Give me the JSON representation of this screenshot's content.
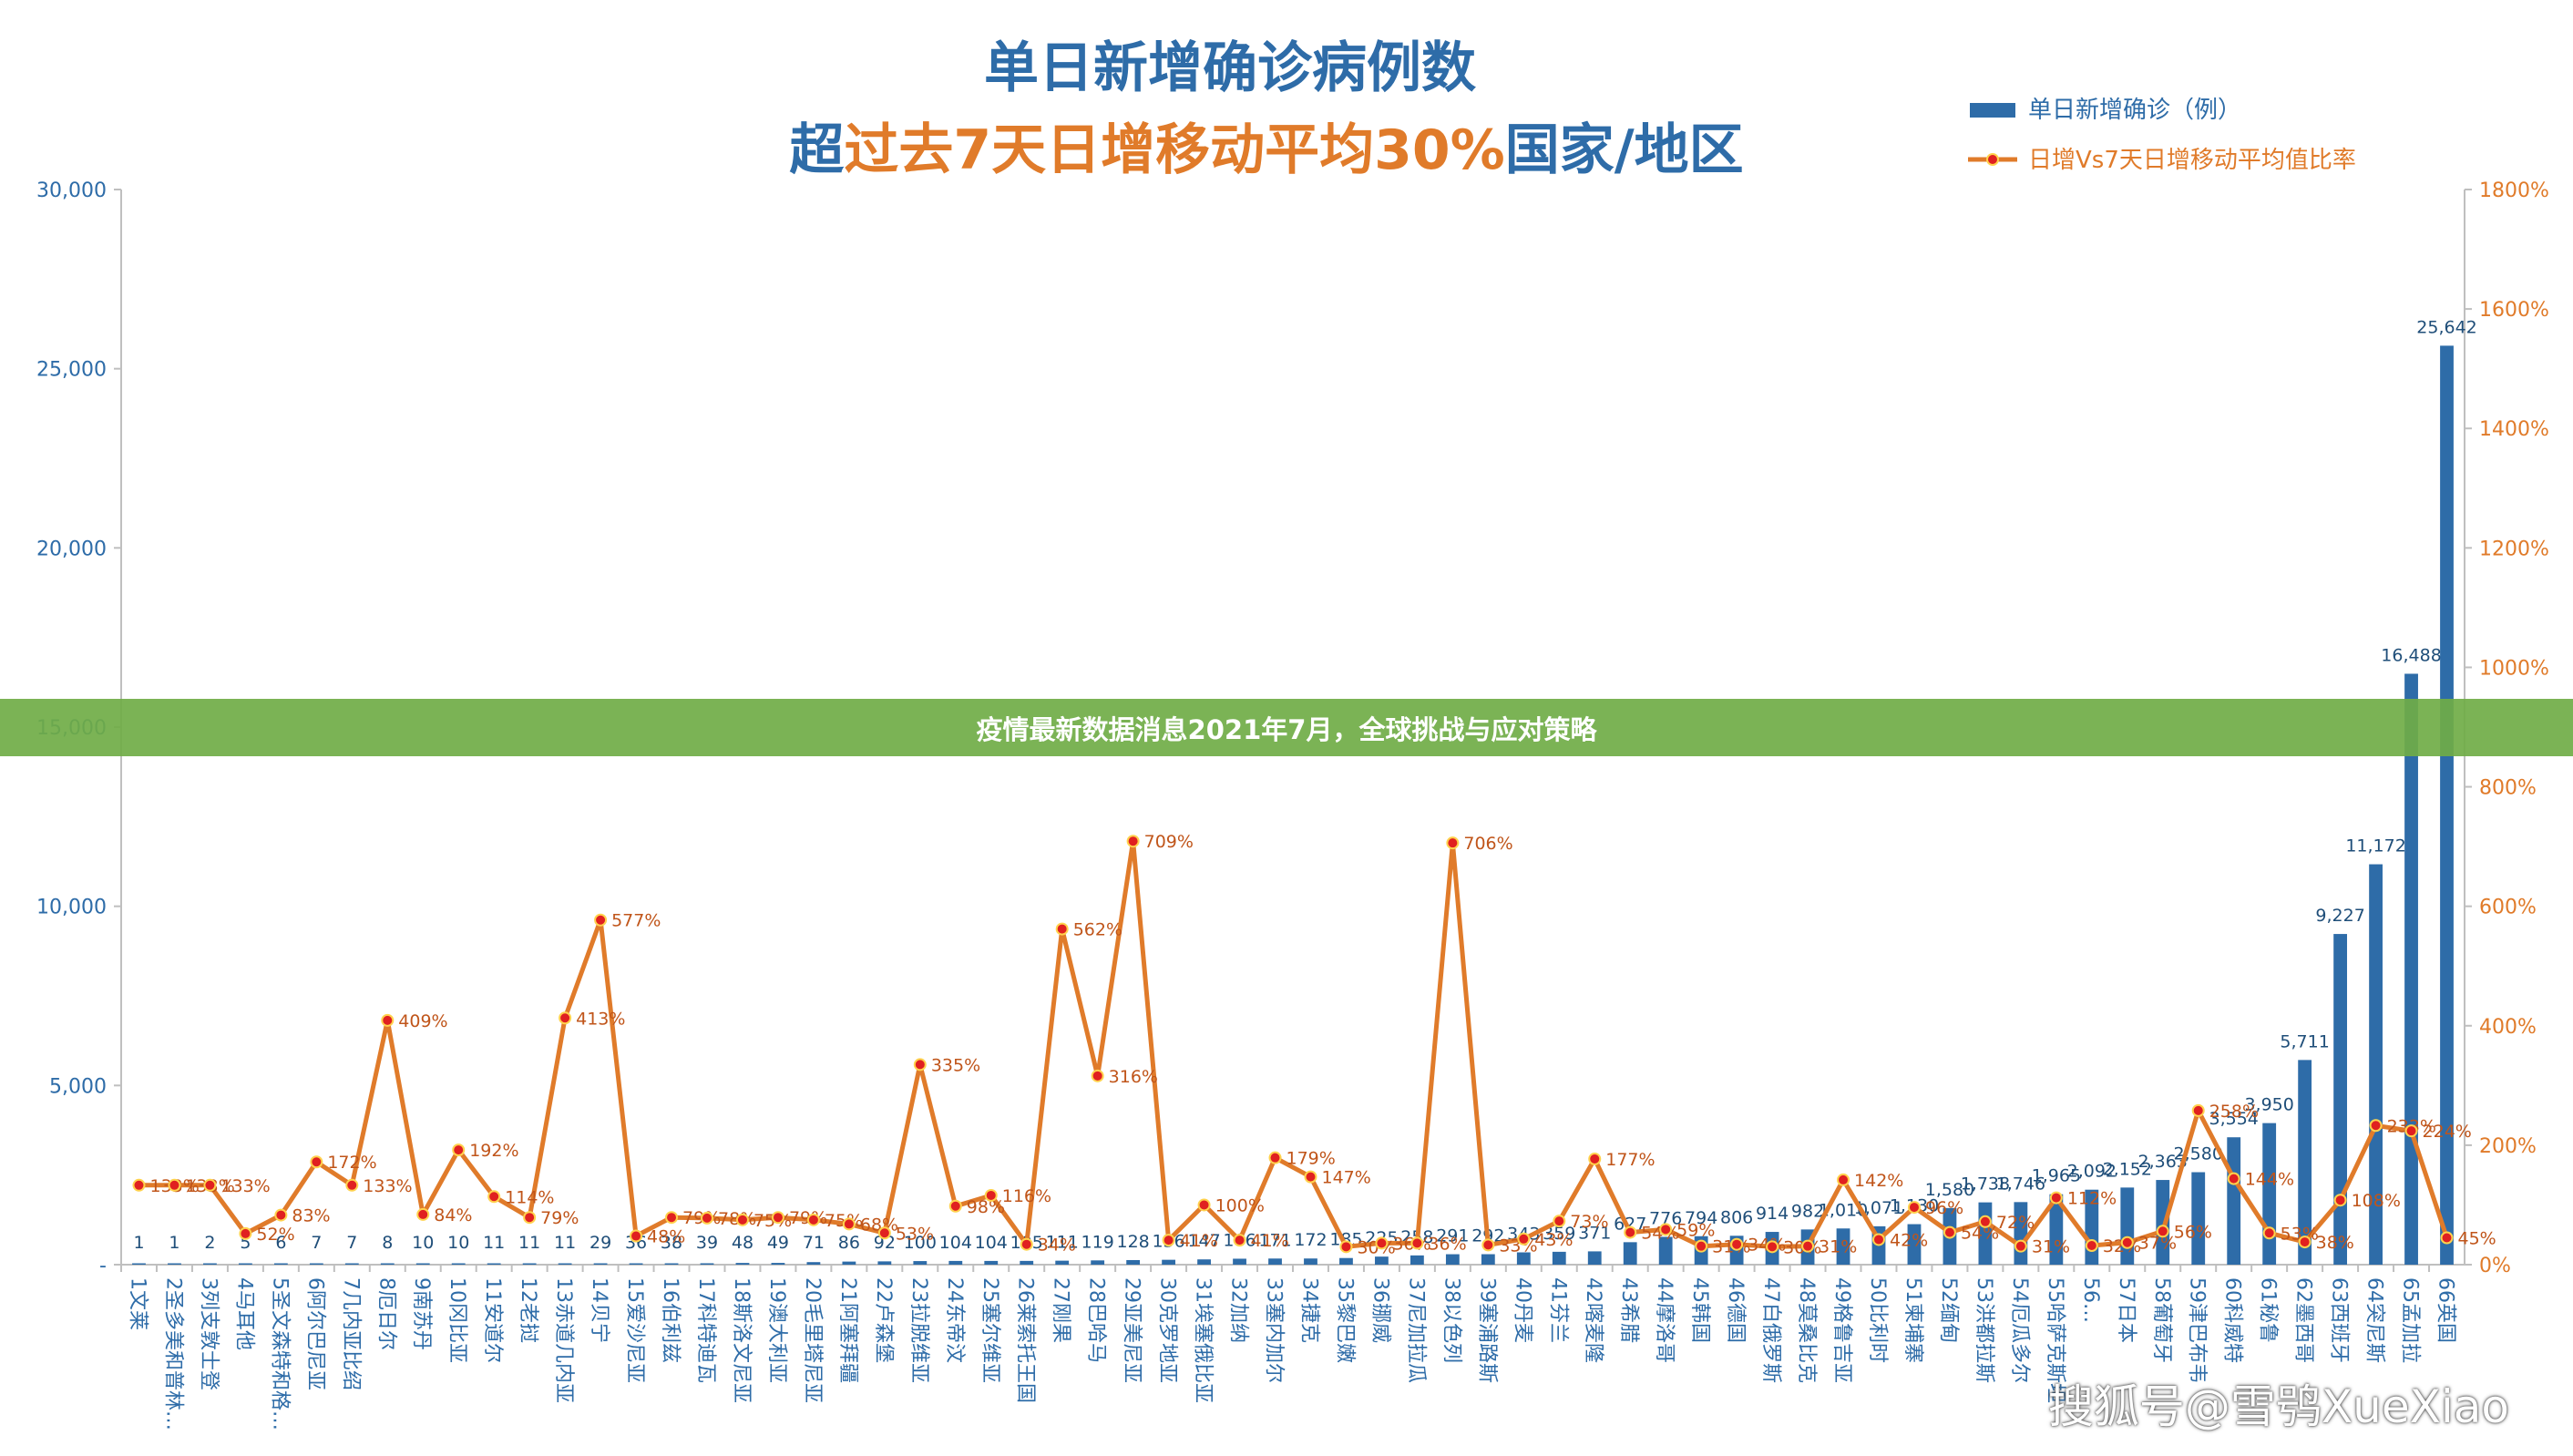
{
  "chart_data": {
    "type": "bar",
    "title": "单日新增确诊病例数",
    "subtitle_segments": [
      {
        "text": "超",
        "color": "#2e6ca8"
      },
      {
        "text": "过去7天日增移动平均30%",
        "color": "#e07b2a"
      },
      {
        "text": "国家/地区",
        "color": "#2e6ca8"
      }
    ],
    "legend_position": "top-right",
    "y_left": {
      "min": 0,
      "max": 30000,
      "ticks": [
        "-",
        "5,000",
        "10,000",
        "15,000",
        "20,000",
        "25,000",
        "30,000"
      ]
    },
    "y_right": {
      "min": 0,
      "max": 1800,
      "ticks": [
        "0%",
        "200%",
        "400%",
        "600%",
        "800%",
        "1000%",
        "1200%",
        "1400%",
        "1600%",
        "1800%"
      ]
    },
    "categories": [
      "1文莱",
      "2圣多美和普林…",
      "3列支敦士登",
      "4马耳他",
      "5圣文森特和格…",
      "6阿尔巴尼亚",
      "7几内亚比绍",
      "8厄日尔",
      "9南苏丹",
      "10冈比亚",
      "11安道尔",
      "12老挝",
      "13赤道几内亚",
      "14贝宁",
      "15爱沙尼亚",
      "16伯利兹",
      "17科特迪瓦",
      "18斯洛文尼亚",
      "19澳大利亚",
      "20毛里塔尼亚",
      "21阿塞拜疆",
      "22卢森堡",
      "23拉脱维亚",
      "24东帝汶",
      "25塞尔维亚",
      "26莱索托王国",
      "27刚果",
      "28巴哈马",
      "29亚美尼亚",
      "30克罗地亚",
      "31埃塞俄比亚",
      "32加纳",
      "33塞内加尔",
      "34捷克",
      "35黎巴嫩",
      "36挪威",
      "37尼加拉瓜",
      "38以色列",
      "39塞浦路斯",
      "40丹麦",
      "41芬兰",
      "42喀麦隆",
      "43希腊",
      "44摩洛哥",
      "45韩国",
      "46德国",
      "47白俄罗斯",
      "48莫桑比克",
      "49格鲁吉亚",
      "50比利时",
      "51柬埔寨",
      "52缅甸",
      "53洪都拉斯",
      "54厄瓜多尔",
      "55哈萨克斯坦",
      "56…",
      "57日本",
      "58葡萄牙",
      "59津巴布韦",
      "60科威特",
      "61秘鲁",
      "62墨西哥",
      "63西班牙",
      "64突尼斯",
      "65孟加拉",
      "66英国"
    ],
    "series": [
      {
        "name": "单日新增确诊（例）",
        "type": "bar",
        "color": "#2e6ca8",
        "values": [
          1,
          1,
          2,
          5,
          6,
          7,
          7,
          8,
          10,
          10,
          11,
          11,
          11,
          29,
          36,
          38,
          39,
          48,
          49,
          71,
          86,
          92,
          100,
          104,
          104,
          105,
          111,
          119,
          128,
          136,
          147,
          166,
          171,
          172,
          185,
          225,
          258,
          291,
          292,
          343,
          359,
          371,
          627,
          776,
          794,
          806,
          914,
          982,
          1010,
          1071,
          1130,
          1580,
          1738,
          1746,
          1965,
          2092,
          2152,
          2363,
          2580,
          3554,
          3950,
          5711,
          9227,
          11172,
          16488,
          25642
        ],
        "labels": [
          "1",
          "1",
          "2",
          "5",
          "6",
          "7",
          "7",
          "8",
          "10",
          "10",
          "11",
          "11",
          "11",
          "29",
          "36",
          "38",
          "39",
          "48",
          "49",
          "71",
          "86",
          "92",
          "100",
          "104",
          "104",
          "105",
          "111",
          "119",
          "128",
          "136",
          "147",
          "166",
          "171",
          "172",
          "185",
          "225",
          "258",
          "291",
          "292",
          "343",
          "359",
          "371",
          "627",
          "776",
          "794",
          "806",
          "914",
          "982",
          "1,010",
          "1,071",
          "1,130",
          "1,580",
          "1,738",
          "1,746",
          "1,965",
          "2,092",
          "2,152",
          "2,363",
          "2,580",
          "3,554",
          "3,950",
          "5,711",
          "9,227",
          "11,172",
          "16,488",
          "25,642"
        ]
      },
      {
        "name": "日增Vs7天日增移动平均值比率",
        "type": "line",
        "color": "#e07b2a",
        "marker_color": "#e02020",
        "values": [
          133,
          133,
          133,
          52,
          83,
          172,
          133,
          409,
          84,
          192,
          114,
          79,
          413,
          577,
          48,
          79,
          78,
          75,
          79,
          75,
          68,
          53,
          335,
          98,
          116,
          34,
          562,
          316,
          709,
          41,
          100,
          41,
          179,
          147,
          30,
          36,
          36,
          706,
          33,
          43,
          73,
          177,
          54,
          59,
          31,
          34,
          30,
          31,
          142,
          42,
          96,
          54,
          72,
          31,
          112,
          32,
          37,
          56,
          258,
          144,
          53,
          38,
          108,
          233,
          224,
          45
        ],
        "labels": [
          "133%",
          "133%",
          "133%",
          "52%",
          "83%",
          "172%",
          "133%",
          "409%",
          "84%",
          "192%",
          "114%",
          "79%",
          "413%",
          "577%",
          "48%",
          "79%",
          "78%",
          "75%",
          "79%",
          "75%",
          "68%",
          "53%",
          "335%",
          "98%",
          "116%",
          "34%",
          "562%",
          "316%",
          "709%",
          "41%",
          "100%",
          "41%",
          "179%",
          "147%",
          "30%",
          "36%",
          "36%",
          "706%",
          "33%",
          "43%",
          "73%",
          "177%",
          "54%",
          "59%",
          "31%",
          "34%",
          "30%",
          "31%",
          "142%",
          "42%",
          "96%",
          "54%",
          "72%",
          "31%",
          "112%",
          "32%",
          "37%",
          "56%",
          "258%",
          "144%",
          "53%",
          "38%",
          "108%",
          "233%",
          "224%",
          "45%"
        ]
      }
    ]
  },
  "banner": {
    "text": "疫情最新数据消息2021年7月，全球挑战与应对策略"
  },
  "watermark": {
    "text": "搜狐号@雪鸮XueXiao"
  }
}
